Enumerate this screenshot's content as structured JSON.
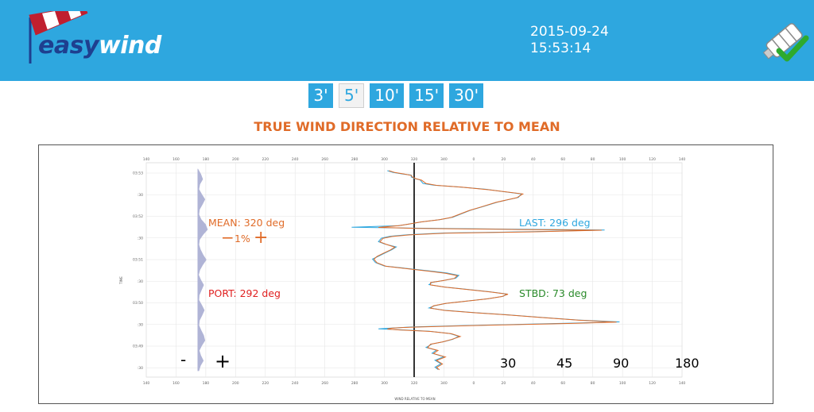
{
  "header": {
    "logo": {
      "word1": "easy",
      "word2": "wind"
    },
    "date": "2015-09-24",
    "time": "15:53:14",
    "status_icon": "windsock-check-icon",
    "colors": {
      "bar": "#2ea7df",
      "brand_dark": "#1e3f8f",
      "check": "#2eaa2e"
    }
  },
  "periods": [
    {
      "label": "3'",
      "active": false
    },
    {
      "label": "5'",
      "active": true
    },
    {
      "label": "10'",
      "active": false
    },
    {
      "label": "15'",
      "active": false
    },
    {
      "label": "30'",
      "active": false
    }
  ],
  "page_title": "TRUE WIND DIRECTION RELATIVE TO MEAN",
  "chart_data": {
    "type": "line",
    "xlabel": "WIND RELATIVE TO MEAN",
    "ylabel": "TIME",
    "x_tick_labels": [
      "140",
      "160",
      "180",
      "200",
      "220",
      "240",
      "260",
      "280",
      "300",
      "320",
      "340",
      "0",
      "20",
      "40",
      "60",
      "80",
      "100",
      "120",
      "140"
    ],
    "y_tick_labels": [
      "03:53",
      ":30",
      "03:52",
      ":30",
      "03:51",
      ":30",
      "03:50",
      ":30",
      "03:49",
      ":30"
    ],
    "grid": true,
    "mean_line_x": "320",
    "series": [
      {
        "color": "#2ea7df",
        "points": [
          [
            302,
            0.0
          ],
          [
            306,
            0.08
          ],
          [
            312,
            0.14
          ],
          [
            318,
            0.19
          ],
          [
            318,
            0.27
          ],
          [
            320,
            0.33
          ],
          [
            324,
            0.4
          ],
          [
            326,
            0.55
          ],
          [
            333,
            0.62
          ],
          [
            350,
            0.7
          ],
          [
            368,
            0.8
          ],
          [
            392,
            1.0
          ],
          [
            390,
            1.15
          ],
          [
            376,
            1.35
          ],
          [
            366,
            1.55
          ],
          [
            358,
            1.7
          ],
          [
            352,
            1.85
          ],
          [
            346,
            2.0
          ],
          [
            338,
            2.1
          ],
          [
            325,
            2.2
          ],
          [
            316,
            2.3
          ],
          [
            310,
            2.36
          ],
          [
            278,
            2.43
          ],
          [
            320,
            2.47
          ],
          [
            392,
            2.52
          ],
          [
            448,
            2.55
          ],
          [
            400,
            2.62
          ],
          [
            340,
            2.68
          ],
          [
            316,
            2.75
          ],
          [
            304,
            2.82
          ],
          [
            298,
            2.9
          ],
          [
            296,
            3.05
          ],
          [
            300,
            3.15
          ],
          [
            308,
            3.28
          ],
          [
            305,
            3.4
          ],
          [
            300,
            3.55
          ],
          [
            296,
            3.68
          ],
          [
            292,
            3.8
          ],
          [
            294,
            3.95
          ],
          [
            300,
            4.1
          ],
          [
            318,
            4.22
          ],
          [
            332,
            4.32
          ],
          [
            342,
            4.4
          ],
          [
            350,
            4.5
          ],
          [
            348,
            4.62
          ],
          [
            340,
            4.72
          ],
          [
            332,
            4.8
          ],
          [
            330,
            4.9
          ],
          [
            340,
            5.0
          ],
          [
            355,
            5.1
          ],
          [
            370,
            5.2
          ],
          [
            382,
            5.3
          ],
          [
            380,
            5.4
          ],
          [
            370,
            5.5
          ],
          [
            356,
            5.6
          ],
          [
            342,
            5.7
          ],
          [
            334,
            5.8
          ],
          [
            330,
            5.9
          ],
          [
            340,
            6.0
          ],
          [
            360,
            6.1
          ],
          [
            384,
            6.2
          ],
          [
            404,
            6.3
          ],
          [
            430,
            6.42
          ],
          [
            458,
            6.5
          ],
          [
            430,
            6.55
          ],
          [
            380,
            6.62
          ],
          [
            340,
            6.68
          ],
          [
            318,
            6.72
          ],
          [
            306,
            6.76
          ],
          [
            296,
            6.8
          ],
          [
            310,
            6.84
          ],
          [
            330,
            6.9
          ],
          [
            344,
            7.0
          ],
          [
            350,
            7.12
          ],
          [
            346,
            7.25
          ],
          [
            340,
            7.35
          ],
          [
            332,
            7.45
          ],
          [
            328,
            7.6
          ],
          [
            335,
            7.72
          ],
          [
            332,
            7.85
          ],
          [
            340,
            8.0
          ],
          [
            334,
            8.15
          ],
          [
            338,
            8.3
          ],
          [
            334,
            8.45
          ],
          [
            336,
            8.55
          ]
        ]
      },
      {
        "color": "#e06b28",
        "points": [
          [
            303,
            0.0
          ],
          [
            307,
            0.08
          ],
          [
            313,
            0.14
          ],
          [
            318,
            0.2
          ],
          [
            319,
            0.28
          ],
          [
            321,
            0.34
          ],
          [
            325,
            0.41
          ],
          [
            328,
            0.55
          ],
          [
            335,
            0.63
          ],
          [
            352,
            0.71
          ],
          [
            370,
            0.82
          ],
          [
            393,
            1.0
          ],
          [
            389,
            1.16
          ],
          [
            375,
            1.36
          ],
          [
            365,
            1.56
          ],
          [
            357,
            1.71
          ],
          [
            351,
            1.86
          ],
          [
            345,
            2.01
          ],
          [
            337,
            2.11
          ],
          [
            324,
            2.21
          ],
          [
            315,
            2.31
          ],
          [
            309,
            2.37
          ],
          [
            296,
            2.44
          ],
          [
            322,
            2.48
          ],
          [
            390,
            2.53
          ],
          [
            446,
            2.56
          ],
          [
            398,
            2.63
          ],
          [
            341,
            2.69
          ],
          [
            317,
            2.76
          ],
          [
            305,
            2.83
          ],
          [
            299,
            2.91
          ],
          [
            297,
            3.06
          ],
          [
            301,
            3.16
          ],
          [
            307,
            3.29
          ],
          [
            304,
            3.41
          ],
          [
            299,
            3.56
          ],
          [
            295,
            3.69
          ],
          [
            293,
            3.81
          ],
          [
            295,
            3.96
          ],
          [
            301,
            4.11
          ],
          [
            317,
            4.23
          ],
          [
            331,
            4.33
          ],
          [
            341,
            4.41
          ],
          [
            349,
            4.51
          ],
          [
            347,
            4.63
          ],
          [
            339,
            4.73
          ],
          [
            331,
            4.81
          ],
          [
            331,
            4.91
          ],
          [
            341,
            5.01
          ],
          [
            356,
            5.11
          ],
          [
            371,
            5.21
          ],
          [
            383,
            5.31
          ],
          [
            379,
            5.41
          ],
          [
            369,
            5.51
          ],
          [
            355,
            5.61
          ],
          [
            341,
            5.71
          ],
          [
            333,
            5.81
          ],
          [
            331,
            5.91
          ],
          [
            341,
            6.01
          ],
          [
            361,
            6.11
          ],
          [
            385,
            6.21
          ],
          [
            405,
            6.31
          ],
          [
            431,
            6.43
          ],
          [
            456,
            6.51
          ],
          [
            429,
            6.56
          ],
          [
            379,
            6.63
          ],
          [
            341,
            6.69
          ],
          [
            317,
            6.73
          ],
          [
            305,
            6.77
          ],
          [
            302,
            6.81
          ],
          [
            311,
            6.85
          ],
          [
            331,
            6.91
          ],
          [
            345,
            7.01
          ],
          [
            351,
            7.13
          ],
          [
            345,
            7.26
          ],
          [
            339,
            7.36
          ],
          [
            331,
            7.46
          ],
          [
            329,
            7.61
          ],
          [
            336,
            7.73
          ],
          [
            333,
            7.86
          ],
          [
            341,
            8.01
          ],
          [
            335,
            8.16
          ],
          [
            339,
            8.31
          ],
          [
            335,
            8.46
          ],
          [
            337,
            8.56
          ]
        ]
      }
    ],
    "histogram": {
      "color": "#b0b4d6",
      "left_x": "180",
      "widths": [
        0,
        0.9,
        1.5,
        0.6,
        0.3,
        1.2,
        2.2,
        1.4,
        0.5,
        0.3,
        1.0,
        2.4,
        3.0,
        1.6,
        0.5,
        0.3,
        0.8,
        1.6,
        2.6,
        1.5,
        0.6,
        0.2,
        0.9,
        1.8,
        1.1,
        0.4,
        0.3,
        1.2,
        2.0,
        1.3,
        0.5,
        0.3,
        1.0,
        1.8,
        2.2,
        1.2,
        0.4,
        0.9,
        1.7,
        0.8,
        0.3
      ]
    }
  },
  "annotations": {
    "mean": "MEAN: 320 deg",
    "port": "PORT: 292 deg",
    "last": "LAST: 296 deg",
    "stbd": "STBD: 73 deg",
    "scale_minus": "−",
    "scale_percent": "1%",
    "scale_plus": "+",
    "width_minus": "-",
    "width_plus": "+",
    "range_options": [
      "30",
      "45",
      "90",
      "180"
    ],
    "colors": {
      "mean": "#e06b28",
      "port": "#e02020",
      "last": "#2ea7df",
      "stbd": "#2a8a2a"
    }
  }
}
